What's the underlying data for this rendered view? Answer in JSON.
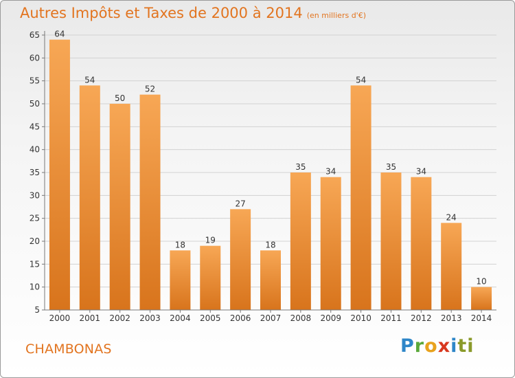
{
  "header": {
    "title": "Autres Impôts et Taxes de 2000 à 2014",
    "subtitle": "(en milliers d'€)"
  },
  "footer": {
    "commune": "CHAMBONAS",
    "brand_letters": [
      "P",
      "r",
      "o",
      "x",
      "i",
      "ti"
    ]
  },
  "colors": {
    "bar_top": "#f7a755",
    "bar_bottom": "#d8741c",
    "title": "#e2741f"
  },
  "chart_data": {
    "type": "bar",
    "title": "Autres Impôts et Taxes de 2000 à 2014",
    "subtitle": "(en milliers d'€)",
    "xlabel": "",
    "ylabel": "",
    "categories": [
      "2000",
      "2001",
      "2002",
      "2003",
      "2004",
      "2005",
      "2006",
      "2007",
      "2008",
      "2009",
      "2010",
      "2011",
      "2012",
      "2013",
      "2014"
    ],
    "values": [
      64,
      54,
      50,
      52,
      18,
      19,
      27,
      18,
      35,
      34,
      54,
      35,
      34,
      24,
      10
    ],
    "ylim": [
      5,
      65
    ],
    "yticks": [
      5,
      10,
      15,
      20,
      25,
      30,
      35,
      40,
      45,
      50,
      55,
      60,
      65
    ],
    "grid": true,
    "legend": "none"
  }
}
